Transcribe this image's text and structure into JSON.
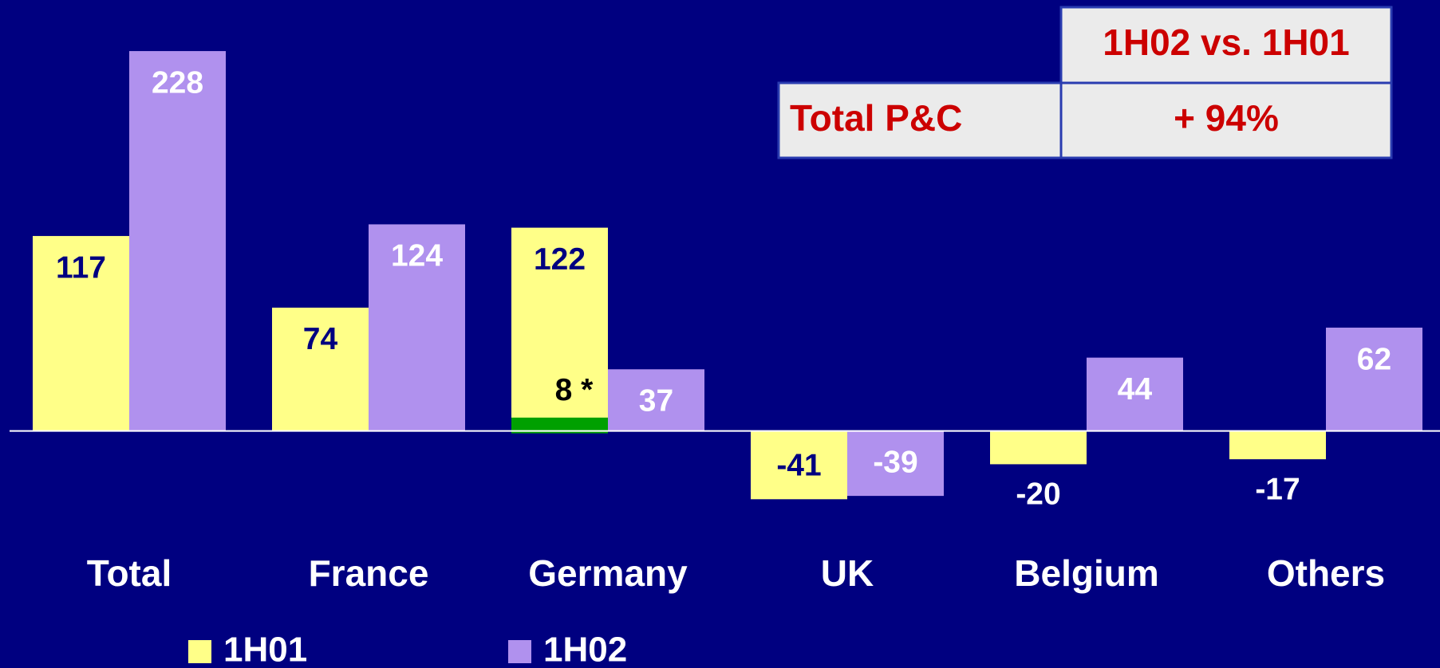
{
  "chart_data": {
    "type": "bar",
    "categories": [
      "Total",
      "France",
      "Germany",
      "UK",
      "Belgium",
      "Others"
    ],
    "series": [
      {
        "name": "1H01",
        "color": "#ffff88",
        "values": [
          117,
          74,
          122,
          -41,
          -20,
          -17
        ]
      },
      {
        "name": "1H02",
        "color": "#b091ee",
        "values": [
          228,
          124,
          37,
          -39,
          44,
          62
        ]
      }
    ],
    "segment": {
      "category": "Germany",
      "value": 8,
      "label": "8 *",
      "color": "#00a000"
    },
    "ylim": [
      -60,
      240
    ]
  },
  "table": {
    "header": "1H02 vs. 1H01",
    "row_label": "Total P&C",
    "row_value": "+ 94%"
  }
}
